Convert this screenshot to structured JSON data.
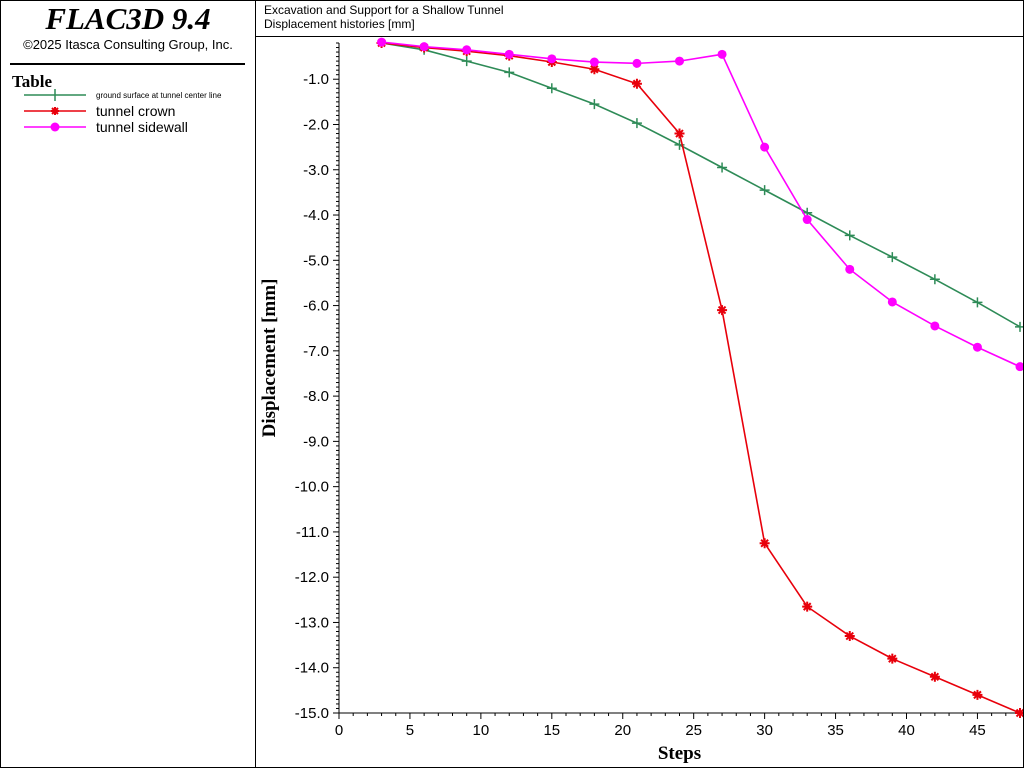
{
  "app": {
    "title": "FLAC3D 9.4",
    "copyright": "©2025 Itasca Consulting Group, Inc."
  },
  "legend": {
    "heading": "Table",
    "items": [
      {
        "label": "ground surface at tunnel center line",
        "color": "#2e8b57",
        "marker": "plus-icon"
      },
      {
        "label": "tunnel crown",
        "color": "#e8000b",
        "marker": "asterisk-icon"
      },
      {
        "label": "tunnel sidewall",
        "color": "#ff00ff",
        "marker": "circle-icon"
      }
    ]
  },
  "header": {
    "line1": "Excavation and Support for a Shallow Tunnel",
    "line2": "Displacement histories [mm]"
  },
  "chart_data": {
    "type": "line",
    "xlabel": "Steps",
    "ylabel": "Displacement [mm]",
    "xlim": [
      0,
      48
    ],
    "ylim": [
      -15,
      -0.2
    ],
    "xticks": [
      0,
      5,
      10,
      15,
      20,
      25,
      30,
      35,
      40,
      45
    ],
    "yticks": [
      -1.0,
      -2.0,
      -3.0,
      -4.0,
      -5.0,
      -6.0,
      -7.0,
      -8.0,
      -9.0,
      -10.0,
      -11.0,
      -12.0,
      -13.0,
      -14.0,
      -15.0
    ],
    "x": [
      3,
      6,
      9,
      12,
      15,
      18,
      21,
      24,
      27,
      30,
      33,
      36,
      39,
      42,
      45,
      48
    ],
    "series": [
      {
        "name": "ground surface at tunnel center line",
        "color": "#2e8b57",
        "marker": "plus",
        "values": [
          -0.2,
          -0.35,
          -0.6,
          -0.85,
          -1.2,
          -1.55,
          -1.97,
          -2.45,
          -2.95,
          -3.45,
          -3.95,
          -4.45,
          -4.93,
          -5.42,
          -5.93,
          -6.47
        ]
      },
      {
        "name": "tunnel crown",
        "color": "#e8000b",
        "marker": "asterisk",
        "values": [
          -0.2,
          -0.3,
          -0.38,
          -0.48,
          -0.62,
          -0.78,
          -1.1,
          -2.2,
          -6.1,
          -11.25,
          -12.65,
          -13.3,
          -13.8,
          -14.2,
          -14.6,
          -15.0
        ]
      },
      {
        "name": "tunnel sidewall",
        "color": "#ff00ff",
        "marker": "circle",
        "values": [
          -0.18,
          -0.28,
          -0.35,
          -0.45,
          -0.55,
          -0.62,
          -0.65,
          -0.6,
          -0.45,
          -2.5,
          -4.1,
          -5.2,
          -5.92,
          -6.45,
          -6.92,
          -7.35
        ]
      }
    ]
  }
}
